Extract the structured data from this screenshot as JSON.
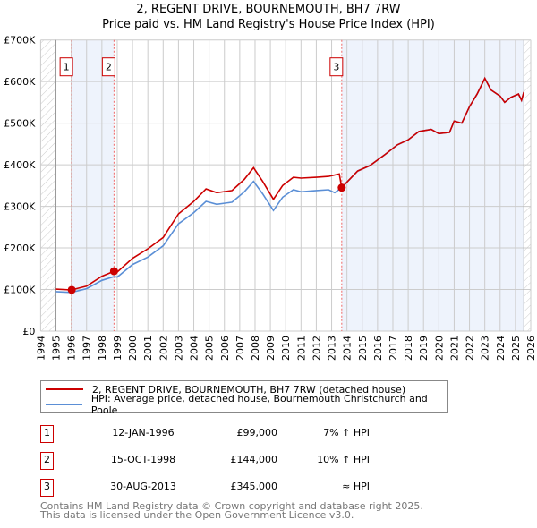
{
  "chart_data": {
    "type": "line",
    "title": "2, REGENT DRIVE, BOURNEMOUTH, BH7 7RW",
    "subtitle": "Price paid vs. HM Land Registry's House Price Index (HPI)",
    "xlim": [
      1994,
      2026
    ],
    "ylim": [
      0,
      700000
    ],
    "yticks": [
      {
        "v": 0,
        "l": "£0"
      },
      {
        "v": 100000,
        "l": "£100K"
      },
      {
        "v": 200000,
        "l": "£200K"
      },
      {
        "v": 300000,
        "l": "£300K"
      },
      {
        "v": 400000,
        "l": "£400K"
      },
      {
        "v": 500000,
        "l": "£500K"
      },
      {
        "v": 600000,
        "l": "£600K"
      },
      {
        "v": 700000,
        "l": "£700K"
      }
    ],
    "xticks": [
      "1994",
      "1995",
      "1996",
      "1997",
      "1998",
      "1999",
      "2000",
      "2001",
      "2002",
      "2003",
      "2004",
      "2005",
      "2006",
      "2007",
      "2008",
      "2009",
      "2010",
      "2011",
      "2012",
      "2013",
      "2014",
      "2015",
      "2016",
      "2017",
      "2018",
      "2019",
      "2020",
      "2021",
      "2022",
      "2023",
      "2024",
      "2025",
      "2026"
    ],
    "grid": true,
    "series": [
      {
        "name": "2, REGENT DRIVE, BOURNEMOUTH, BH7 7RW (detached house)",
        "color": "#cc0000",
        "x": [
          1995,
          1996,
          1997,
          1998,
          1998.79,
          1999,
          2000,
          2001,
          2002,
          2003,
          2004,
          2004.8,
          2005.5,
          2006.5,
          2007.3,
          2007.9,
          2008.5,
          2009.2,
          2009.8,
          2010.5,
          2011,
          2012,
          2012.8,
          2013.5,
          2013.66,
          2014,
          2014.7,
          2015.5,
          2016.5,
          2017.3,
          2018,
          2018.7,
          2019.5,
          2020,
          2020.7,
          2021,
          2021.5,
          2022,
          2022.5,
          2023,
          2023.4,
          2024,
          2024.3,
          2024.7,
          2025.2,
          2025.4,
          2025.55
        ],
        "y": [
          101000,
          99000,
          108000,
          132000,
          144000,
          142000,
          175000,
          198000,
          225000,
          282000,
          312000,
          342000,
          333000,
          338000,
          365000,
          393000,
          360000,
          317000,
          350000,
          370000,
          368000,
          370000,
          372000,
          378000,
          345000,
          358000,
          385000,
          398000,
          425000,
          448000,
          460000,
          480000,
          485000,
          475000,
          478000,
          505000,
          500000,
          540000,
          570000,
          608000,
          580000,
          565000,
          550000,
          562000,
          570000,
          555000,
          575000
        ]
      },
      {
        "name": "HPI: Average price, detached house, Bournemouth Christchurch and Poole",
        "color": "#5b8fd6",
        "x": [
          1995,
          1996,
          1997,
          1998,
          1998.79,
          1999,
          2000,
          2001,
          2002,
          2003,
          2004,
          2004.8,
          2005.5,
          2006.5,
          2007.3,
          2007.9,
          2008.5,
          2009.2,
          2009.8,
          2010.5,
          2011,
          2012,
          2012.8,
          2013.2,
          2013.66,
          2014,
          2014.7,
          2015.5,
          2016.5,
          2017.3,
          2018,
          2018.7,
          2019.5,
          2020,
          2020.7,
          2021,
          2021.5,
          2022,
          2022.5,
          2023,
          2023.4,
          2024,
          2024.3,
          2024.7,
          2025.2,
          2025.4,
          2025.55
        ],
        "y": [
          95000,
          93000,
          102000,
          122000,
          131000,
          130000,
          160000,
          178000,
          205000,
          258000,
          285000,
          312000,
          305000,
          310000,
          335000,
          360000,
          330000,
          290000,
          322000,
          340000,
          335000,
          338000,
          340000,
          333000,
          345000,
          358000,
          385000,
          398000,
          425000,
          448000,
          460000,
          480000,
          485000,
          475000,
          478000,
          505000,
          500000,
          540000,
          570000,
          608000,
          580000,
          565000,
          550000,
          562000,
          570000,
          555000,
          575000
        ]
      }
    ],
    "sales": [
      {
        "label": "1",
        "x": 1996.03,
        "y": 99000
      },
      {
        "label": "2",
        "x": 1998.79,
        "y": 144000
      },
      {
        "label": "3",
        "x": 2013.66,
        "y": 345000
      }
    ],
    "shaded_ranges": [
      [
        1996.03,
        1998.79
      ],
      [
        2013.66,
        2025.55
      ]
    ],
    "hatched_ranges": [
      [
        1994,
        1995
      ],
      [
        2025.55,
        2026
      ]
    ],
    "legend_position": "below"
  },
  "table": [
    {
      "n": "1",
      "date": "12-JAN-1996",
      "price": "£99,000",
      "hpi": "7% ↑ HPI"
    },
    {
      "n": "2",
      "date": "15-OCT-1998",
      "price": "£144,000",
      "hpi": "10% ↑ HPI"
    },
    {
      "n": "3",
      "date": "30-AUG-2013",
      "price": "£345,000",
      "hpi": "≈ HPI"
    }
  ],
  "footer": [
    "Contains HM Land Registry data © Crown copyright and database right 2025.",
    "This data is licensed under the Open Government Licence v3.0."
  ]
}
